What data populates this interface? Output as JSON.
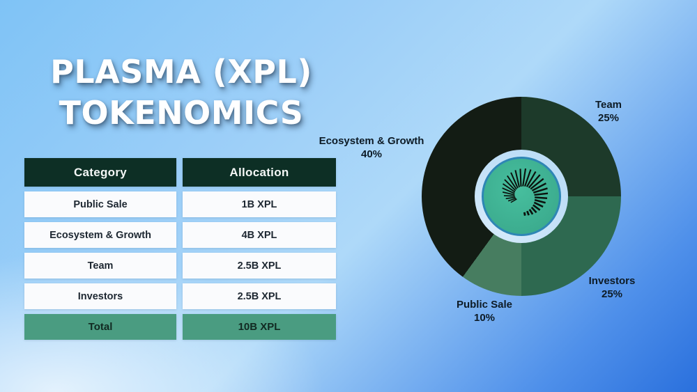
{
  "title": {
    "line1": "PLASMA (XPL)",
    "line2": "TOKENOMICS"
  },
  "table": {
    "headers": [
      "Category",
      "Allocation"
    ],
    "rows": [
      [
        "Public Sale",
        "1B XPL"
      ],
      [
        "Ecosystem & Growth",
        "4B XPL"
      ],
      [
        "Team",
        "2.5B XPL"
      ],
      [
        "Investors",
        "2.5B XPL"
      ]
    ],
    "total": [
      "Total",
      "10B XPL"
    ]
  },
  "chart_data": {
    "type": "pie",
    "donut": true,
    "direction": "clockwise",
    "start_angle_deg": 0,
    "unit": "%",
    "categories": [
      "Team",
      "Investors",
      "Public Sale",
      "Ecosystem & Growth"
    ],
    "values": [
      25,
      25,
      10,
      40
    ],
    "labels_position": "outside",
    "legend": "none",
    "slices": [
      {
        "label": "Team",
        "percent": "25%",
        "value": 25,
        "color": "#1d3a2a"
      },
      {
        "label": "Investors",
        "percent": "25%",
        "value": 25,
        "color": "#2e6950"
      },
      {
        "label": "Public Sale",
        "percent": "10%",
        "value": 10,
        "color": "#477d60"
      },
      {
        "label": "Ecosystem & Growth",
        "percent": "40%",
        "value": 40,
        "color": "#131c14"
      }
    ]
  },
  "colors": {
    "table_header_bg": "#0d2f25",
    "table_total_bg": "#4a9c81",
    "logo_circle_bg": "#41b897",
    "logo_ring": "#2e86b5",
    "donut_hole": "#c0dff7",
    "logo_swirl": "#0b120d"
  }
}
